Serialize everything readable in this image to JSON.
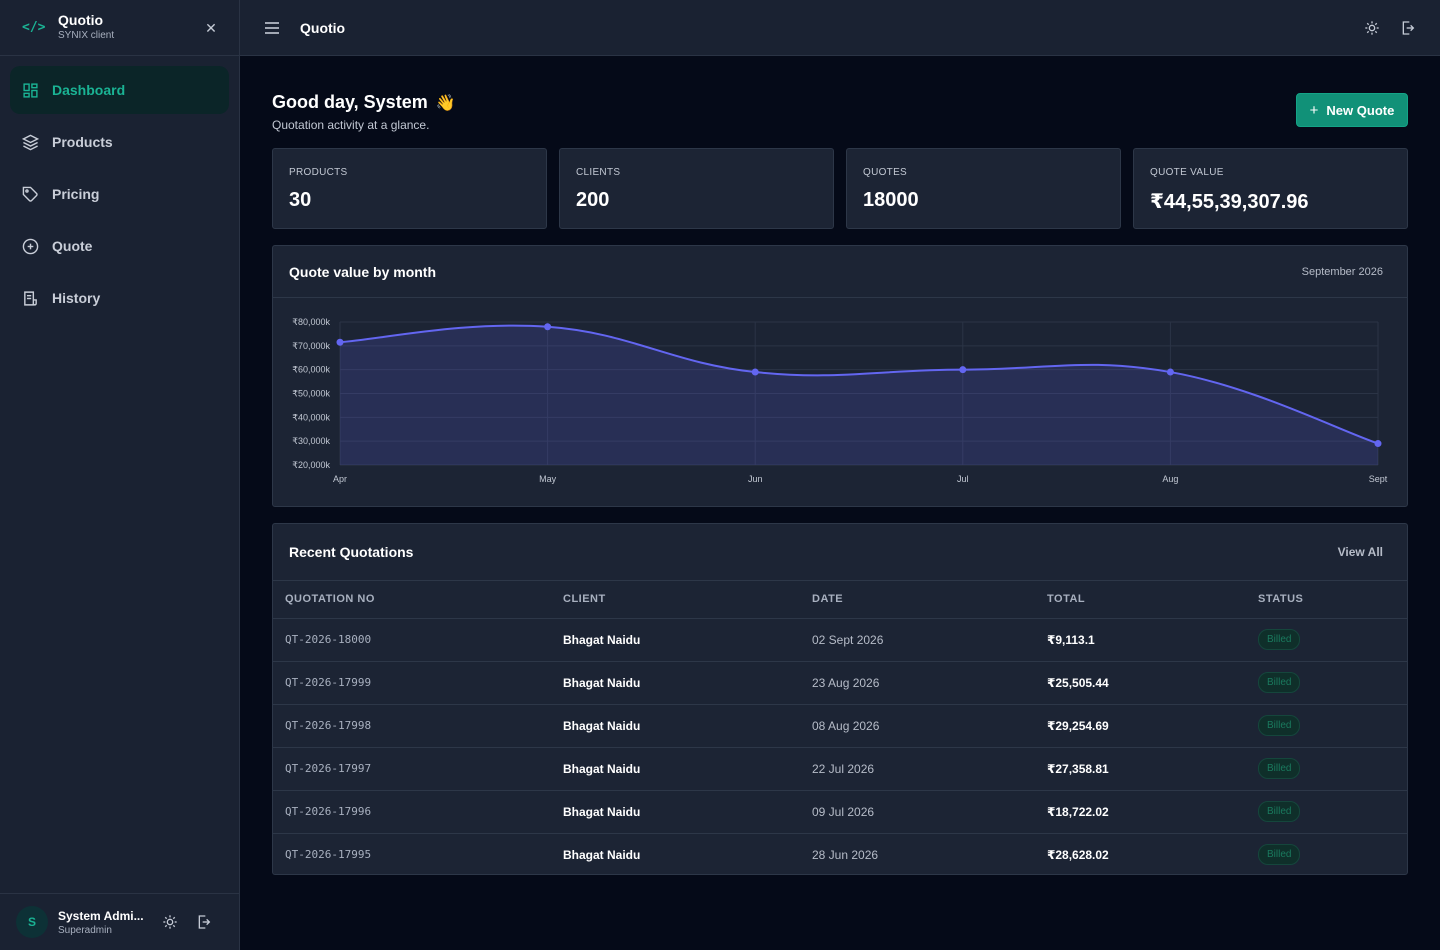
{
  "sidebar": {
    "brand_title": "Quotio",
    "brand_subtitle": "SYNIX client",
    "close_glyph": "✕",
    "items": [
      {
        "label": "Dashboard",
        "icon": "dashboard-icon",
        "active": true
      },
      {
        "label": "Products",
        "icon": "layers-icon",
        "active": false
      },
      {
        "label": "Pricing",
        "icon": "tag-icon",
        "active": false
      },
      {
        "label": "Quote",
        "icon": "plus-circle-icon",
        "active": false
      },
      {
        "label": "History",
        "icon": "receipt-icon",
        "active": false
      }
    ],
    "user": {
      "initial": "S",
      "name": "System Admi...",
      "role": "Superadmin"
    }
  },
  "topbar": {
    "title": "Quotio"
  },
  "main": {
    "greeting": "Good day, System",
    "wave": "👋",
    "subtitle": "Quotation activity at a glance.",
    "new_quote_label": "New Quote",
    "stats": [
      {
        "label": "PRODUCTS",
        "value": "30"
      },
      {
        "label": "CLIENTS",
        "value": "200"
      },
      {
        "label": "QUOTES",
        "value": "18000"
      },
      {
        "label": "QUOTE VALUE",
        "value": "₹44,55,39,307.96"
      }
    ],
    "chart_card": {
      "title": "Quote value by month",
      "period": "September 2026"
    },
    "recent": {
      "title": "Recent Quotations",
      "view_all": "View All",
      "columns": [
        "QUOTATION NO",
        "CLIENT",
        "DATE",
        "TOTAL",
        "STATUS"
      ],
      "rows": [
        {
          "no": "QT-2026-18000",
          "client": "Bhagat Naidu",
          "date": "02 Sept 2026",
          "total": "₹9,113.1",
          "status": "Billed"
        },
        {
          "no": "QT-2026-17999",
          "client": "Bhagat Naidu",
          "date": "23 Aug 2026",
          "total": "₹25,505.44",
          "status": "Billed"
        },
        {
          "no": "QT-2026-17998",
          "client": "Bhagat Naidu",
          "date": "08 Aug 2026",
          "total": "₹29,254.69",
          "status": "Billed"
        },
        {
          "no": "QT-2026-17997",
          "client": "Bhagat Naidu",
          "date": "22 Jul 2026",
          "total": "₹27,358.81",
          "status": "Billed"
        },
        {
          "no": "QT-2026-17996",
          "client": "Bhagat Naidu",
          "date": "09 Jul 2026",
          "total": "₹18,722.02",
          "status": "Billed"
        },
        {
          "no": "QT-2026-17995",
          "client": "Bhagat Naidu",
          "date": "28 Jun 2026",
          "total": "₹28,628.02",
          "status": "Billed"
        }
      ]
    }
  },
  "colors": {
    "accent": "#1ab394",
    "line": "#6366f1",
    "background": "#050a18",
    "panel": "#1c2434"
  },
  "chart_data": {
    "type": "area",
    "x": [
      "Apr",
      "May",
      "Jun",
      "Jul",
      "Aug",
      "Sept"
    ],
    "series": [
      {
        "values": [
          71500,
          78000,
          59000,
          60000,
          59000,
          29000
        ]
      }
    ],
    "y_ticks": [
      "₹80,000k",
      "₹70,000k",
      "₹60,000k",
      "₹50,000k",
      "₹40,000k",
      "₹30,000k",
      "₹20,000k"
    ],
    "ylim": [
      20000,
      80000
    ],
    "grid": true
  }
}
